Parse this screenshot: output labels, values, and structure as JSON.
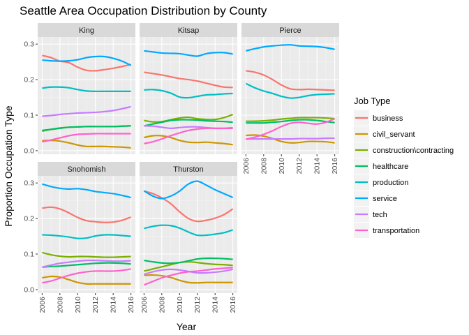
{
  "chart_data": {
    "type": "line",
    "title": "Seattle Area Occupation Distribution by County",
    "xlabel": "Year",
    "ylabel": "Proportion Occupation Type",
    "xlim": [
      2005.5,
      2016.5
    ],
    "ylim": [
      -0.01,
      0.32
    ],
    "x_ticks": [
      2006,
      2008,
      2010,
      2012,
      2014,
      2016
    ],
    "y_ticks": [
      0.0,
      0.1,
      0.2,
      0.3
    ],
    "y_tick_labels": [
      "0.0",
      "0.1",
      "0.2",
      "0.3"
    ],
    "grid": true,
    "legend": {
      "title": "Job Type",
      "placement": "right",
      "entries": [
        "business",
        "civil_servant",
        "construction\\contracting",
        "healthcare",
        "production",
        "service",
        "tech",
        "transportation"
      ]
    },
    "colors": {
      "business": "#F8766D",
      "civil_servant": "#CD9600",
      "construction\\contracting": "#7CAE00",
      "healthcare": "#00BE67",
      "production": "#00BFC4",
      "service": "#00A9FF",
      "tech": "#C77CFF",
      "transportation": "#FF61CC"
    },
    "x": [
      2006,
      2007,
      2008,
      2009,
      2010,
      2011,
      2012,
      2013,
      2014,
      2015,
      2016
    ],
    "panels": [
      {
        "county": "King",
        "series": [
          {
            "name": "business",
            "values": [
              0.268,
              0.262,
              0.252,
              0.248,
              0.235,
              0.226,
              0.225,
              0.228,
              0.232,
              0.237,
              0.243
            ]
          },
          {
            "name": "civil_servant",
            "values": [
              0.028,
              0.029,
              0.027,
              0.022,
              0.016,
              0.012,
              0.012,
              0.012,
              0.011,
              0.01,
              0.008
            ]
          },
          {
            "name": "construction\\contracting",
            "values": [
              0.055,
              0.06,
              0.064,
              0.066,
              0.067,
              0.068,
              0.068,
              0.068,
              0.068,
              0.069,
              0.07
            ]
          },
          {
            "name": "healthcare",
            "values": [
              0.057,
              0.06,
              0.063,
              0.066,
              0.067,
              0.068,
              0.068,
              0.068,
              0.068,
              0.069,
              0.07
            ]
          },
          {
            "name": "production",
            "values": [
              0.176,
              0.179,
              0.179,
              0.177,
              0.172,
              0.168,
              0.167,
              0.167,
              0.167,
              0.167,
              0.167
            ]
          },
          {
            "name": "service",
            "values": [
              0.255,
              0.253,
              0.252,
              0.253,
              0.256,
              0.262,
              0.265,
              0.265,
              0.26,
              0.252,
              0.24
            ]
          },
          {
            "name": "tech",
            "values": [
              0.097,
              0.099,
              0.102,
              0.104,
              0.106,
              0.107,
              0.108,
              0.11,
              0.113,
              0.118,
              0.124
            ]
          },
          {
            "name": "transportation",
            "values": [
              0.025,
              0.03,
              0.036,
              0.042,
              0.046,
              0.047,
              0.048,
              0.048,
              0.048,
              0.048,
              0.048
            ]
          }
        ]
      },
      {
        "county": "Kitsap",
        "series": [
          {
            "name": "business",
            "values": [
              0.221,
              0.217,
              0.213,
              0.208,
              0.203,
              0.2,
              0.196,
              0.19,
              0.184,
              0.179,
              0.178
            ]
          },
          {
            "name": "civil_servant",
            "values": [
              0.037,
              0.042,
              0.042,
              0.037,
              0.029,
              0.024,
              0.023,
              0.024,
              0.022,
              0.02,
              0.017
            ]
          },
          {
            "name": "construction\\contracting",
            "values": [
              0.085,
              0.081,
              0.082,
              0.087,
              0.092,
              0.094,
              0.09,
              0.088,
              0.088,
              0.093,
              0.102
            ]
          },
          {
            "name": "healthcare",
            "values": [
              0.07,
              0.075,
              0.08,
              0.085,
              0.087,
              0.087,
              0.086,
              0.084,
              0.083,
              0.082,
              0.08
            ]
          },
          {
            "name": "production",
            "values": [
              0.171,
              0.172,
              0.169,
              0.162,
              0.151,
              0.149,
              0.153,
              0.157,
              0.158,
              0.16,
              0.161
            ]
          },
          {
            "name": "service",
            "values": [
              0.281,
              0.278,
              0.275,
              0.274,
              0.273,
              0.269,
              0.266,
              0.273,
              0.276,
              0.276,
              0.272
            ]
          },
          {
            "name": "tech",
            "values": [
              0.07,
              0.069,
              0.066,
              0.063,
              0.065,
              0.067,
              0.067,
              0.065,
              0.063,
              0.063,
              0.065
            ]
          },
          {
            "name": "transportation",
            "values": [
              0.02,
              0.025,
              0.033,
              0.042,
              0.05,
              0.057,
              0.061,
              0.063,
              0.063,
              0.063,
              0.063
            ]
          }
        ]
      },
      {
        "county": "Pierce",
        "series": [
          {
            "name": "business",
            "values": [
              0.225,
              0.221,
              0.213,
              0.2,
              0.185,
              0.174,
              0.172,
              0.173,
              0.172,
              0.171,
              0.17
            ]
          },
          {
            "name": "civil_servant",
            "values": [
              0.043,
              0.044,
              0.041,
              0.034,
              0.026,
              0.022,
              0.023,
              0.026,
              0.026,
              0.025,
              0.022
            ]
          },
          {
            "name": "construction\\contracting",
            "values": [
              0.083,
              0.083,
              0.084,
              0.086,
              0.089,
              0.091,
              0.093,
              0.093,
              0.093,
              0.092,
              0.09
            ]
          },
          {
            "name": "healthcare",
            "values": [
              0.078,
              0.078,
              0.078,
              0.08,
              0.082,
              0.085,
              0.087,
              0.087,
              0.085,
              0.082,
              0.079
            ]
          },
          {
            "name": "production",
            "values": [
              0.189,
              0.177,
              0.168,
              0.161,
              0.153,
              0.148,
              0.15,
              0.155,
              0.158,
              0.159,
              0.16
            ]
          },
          {
            "name": "service",
            "values": [
              0.281,
              0.287,
              0.292,
              0.295,
              0.297,
              0.298,
              0.295,
              0.294,
              0.293,
              0.29,
              0.285
            ]
          },
          {
            "name": "tech",
            "values": [
              0.033,
              0.033,
              0.033,
              0.033,
              0.033,
              0.033,
              0.034,
              0.034,
              0.034,
              0.035,
              0.035
            ]
          },
          {
            "name": "transportation",
            "values": [
              0.032,
              0.038,
              0.046,
              0.056,
              0.068,
              0.077,
              0.08,
              0.077,
              0.075,
              0.08,
              0.09
            ]
          }
        ]
      },
      {
        "county": "Snohomish",
        "series": [
          {
            "name": "business",
            "values": [
              0.229,
              0.232,
              0.227,
              0.216,
              0.203,
              0.194,
              0.191,
              0.189,
              0.19,
              0.195,
              0.204
            ]
          },
          {
            "name": "civil_servant",
            "values": [
              0.033,
              0.037,
              0.035,
              0.028,
              0.02,
              0.016,
              0.016,
              0.016,
              0.016,
              0.016,
              0.016
            ]
          },
          {
            "name": "construction\\contracting",
            "values": [
              0.104,
              0.098,
              0.094,
              0.092,
              0.093,
              0.093,
              0.092,
              0.091,
              0.091,
              0.092,
              0.093
            ]
          },
          {
            "name": "healthcare",
            "values": [
              0.063,
              0.065,
              0.066,
              0.068,
              0.07,
              0.072,
              0.074,
              0.075,
              0.075,
              0.074,
              0.072
            ]
          },
          {
            "name": "production",
            "values": [
              0.154,
              0.153,
              0.151,
              0.148,
              0.144,
              0.145,
              0.151,
              0.154,
              0.154,
              0.152,
              0.15
            ]
          },
          {
            "name": "service",
            "values": [
              0.297,
              0.29,
              0.285,
              0.283,
              0.284,
              0.281,
              0.276,
              0.273,
              0.27,
              0.265,
              0.259
            ]
          },
          {
            "name": "tech",
            "values": [
              0.063,
              0.069,
              0.074,
              0.077,
              0.08,
              0.082,
              0.082,
              0.081,
              0.08,
              0.08,
              0.081
            ]
          },
          {
            "name": "transportation",
            "values": [
              0.019,
              0.024,
              0.032,
              0.04,
              0.046,
              0.05,
              0.052,
              0.052,
              0.052,
              0.054,
              0.058
            ]
          }
        ]
      },
      {
        "county": "Thurston",
        "series": [
          {
            "name": "business",
            "values": [
              0.277,
              0.27,
              0.258,
              0.242,
              0.219,
              0.2,
              0.192,
              0.195,
              0.201,
              0.211,
              0.227
            ]
          },
          {
            "name": "civil_servant",
            "values": [
              0.04,
              0.041,
              0.039,
              0.034,
              0.026,
              0.02,
              0.019,
              0.02,
              0.02,
              0.02,
              0.02
            ]
          },
          {
            "name": "construction\\contracting",
            "values": [
              0.052,
              0.058,
              0.064,
              0.07,
              0.076,
              0.078,
              0.076,
              0.073,
              0.071,
              0.07,
              0.068
            ]
          },
          {
            "name": "healthcare",
            "values": [
              0.082,
              0.078,
              0.075,
              0.074,
              0.076,
              0.081,
              0.086,
              0.088,
              0.088,
              0.087,
              0.085
            ]
          },
          {
            "name": "production",
            "values": [
              0.172,
              0.178,
              0.181,
              0.18,
              0.173,
              0.162,
              0.153,
              0.153,
              0.156,
              0.16,
              0.168
            ]
          },
          {
            "name": "service",
            "values": [
              0.278,
              0.263,
              0.256,
              0.263,
              0.277,
              0.297,
              0.305,
              0.294,
              0.281,
              0.27,
              0.259
            ]
          },
          {
            "name": "tech",
            "values": [
              0.043,
              0.05,
              0.055,
              0.057,
              0.055,
              0.051,
              0.047,
              0.047,
              0.049,
              0.052,
              0.057
            ]
          },
          {
            "name": "transportation",
            "values": [
              0.013,
              0.023,
              0.033,
              0.04,
              0.046,
              0.05,
              0.052,
              0.055,
              0.058,
              0.06,
              0.062
            ]
          }
        ]
      }
    ]
  }
}
